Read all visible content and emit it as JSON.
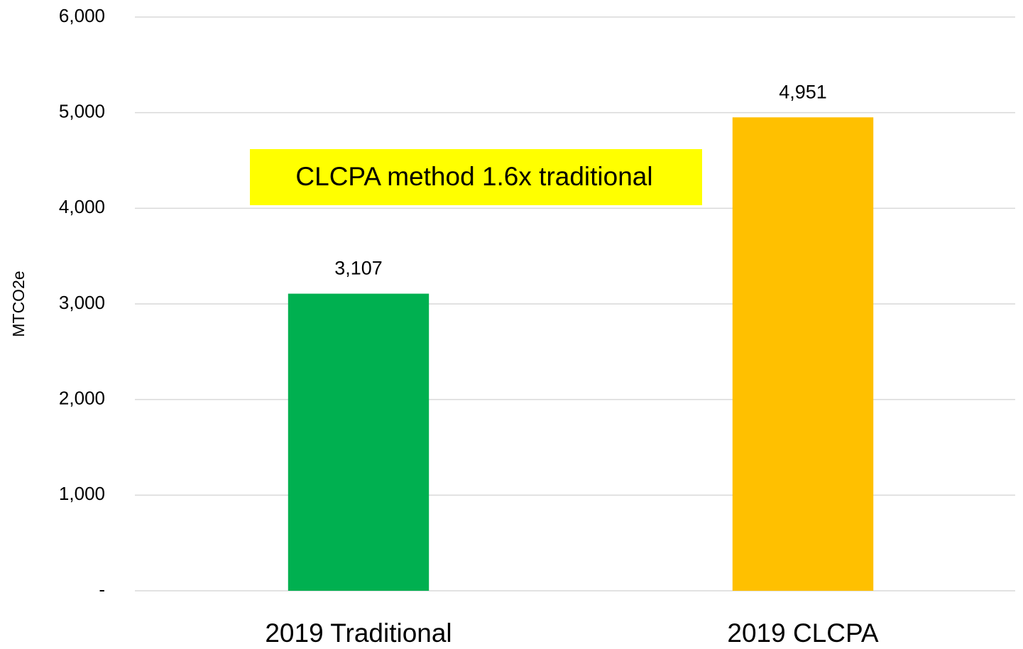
{
  "chart_data": {
    "type": "bar",
    "y_label": "MTCO2e",
    "annotation": "CLCPA method 1.6x traditional",
    "categories": [
      "2019 Traditional",
      "2019 CLCPA"
    ],
    "values": [
      3107,
      4951
    ],
    "value_labels": [
      "3,107",
      "4,951"
    ],
    "colors": [
      "#00b050",
      "#ffc000"
    ],
    "ylim": [
      0,
      6000
    ],
    "yticks": [
      {
        "value": 0,
        "label": "-"
      },
      {
        "value": 1000,
        "label": "1,000"
      },
      {
        "value": 2000,
        "label": "2,000"
      },
      {
        "value": 3000,
        "label": "3,000"
      },
      {
        "value": 4000,
        "label": "4,000"
      },
      {
        "value": 5000,
        "label": "5,000"
      },
      {
        "value": 6000,
        "label": "6,000"
      }
    ],
    "grid": true
  }
}
